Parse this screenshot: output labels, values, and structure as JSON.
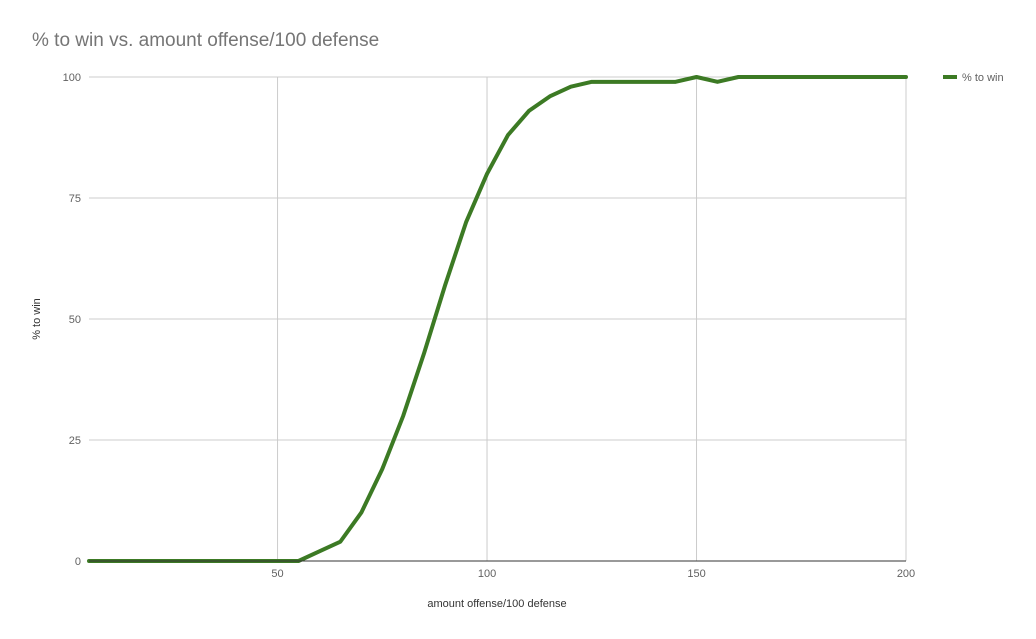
{
  "chart_data": {
    "type": "line",
    "title": "% to win vs. amount offense/100 defense",
    "xlabel": "amount offense/100 defense",
    "ylabel": "% to win",
    "xlim": [
      5,
      200
    ],
    "ylim": [
      0,
      100
    ],
    "x_ticks": [
      50,
      100,
      150,
      200
    ],
    "y_ticks": [
      0,
      25,
      50,
      75,
      100
    ],
    "grid": true,
    "legend_position": "right",
    "series": [
      {
        "name": "% to win",
        "color": "#3c7a24",
        "x": [
          5,
          10,
          15,
          20,
          25,
          30,
          35,
          40,
          45,
          50,
          55,
          60,
          65,
          70,
          75,
          80,
          85,
          90,
          95,
          100,
          105,
          110,
          115,
          120,
          125,
          130,
          135,
          140,
          145,
          150,
          155,
          160,
          165,
          170,
          175,
          180,
          185,
          190,
          195,
          200
        ],
        "y": [
          0,
          0,
          0,
          0,
          0,
          0,
          0,
          0,
          0,
          0,
          0,
          2,
          4,
          10,
          19,
          30,
          43,
          57,
          70,
          80,
          88,
          93,
          96,
          98,
          99,
          99,
          99,
          99,
          99,
          100,
          99,
          100,
          100,
          100,
          100,
          100,
          100,
          100,
          100,
          100
        ]
      }
    ]
  }
}
